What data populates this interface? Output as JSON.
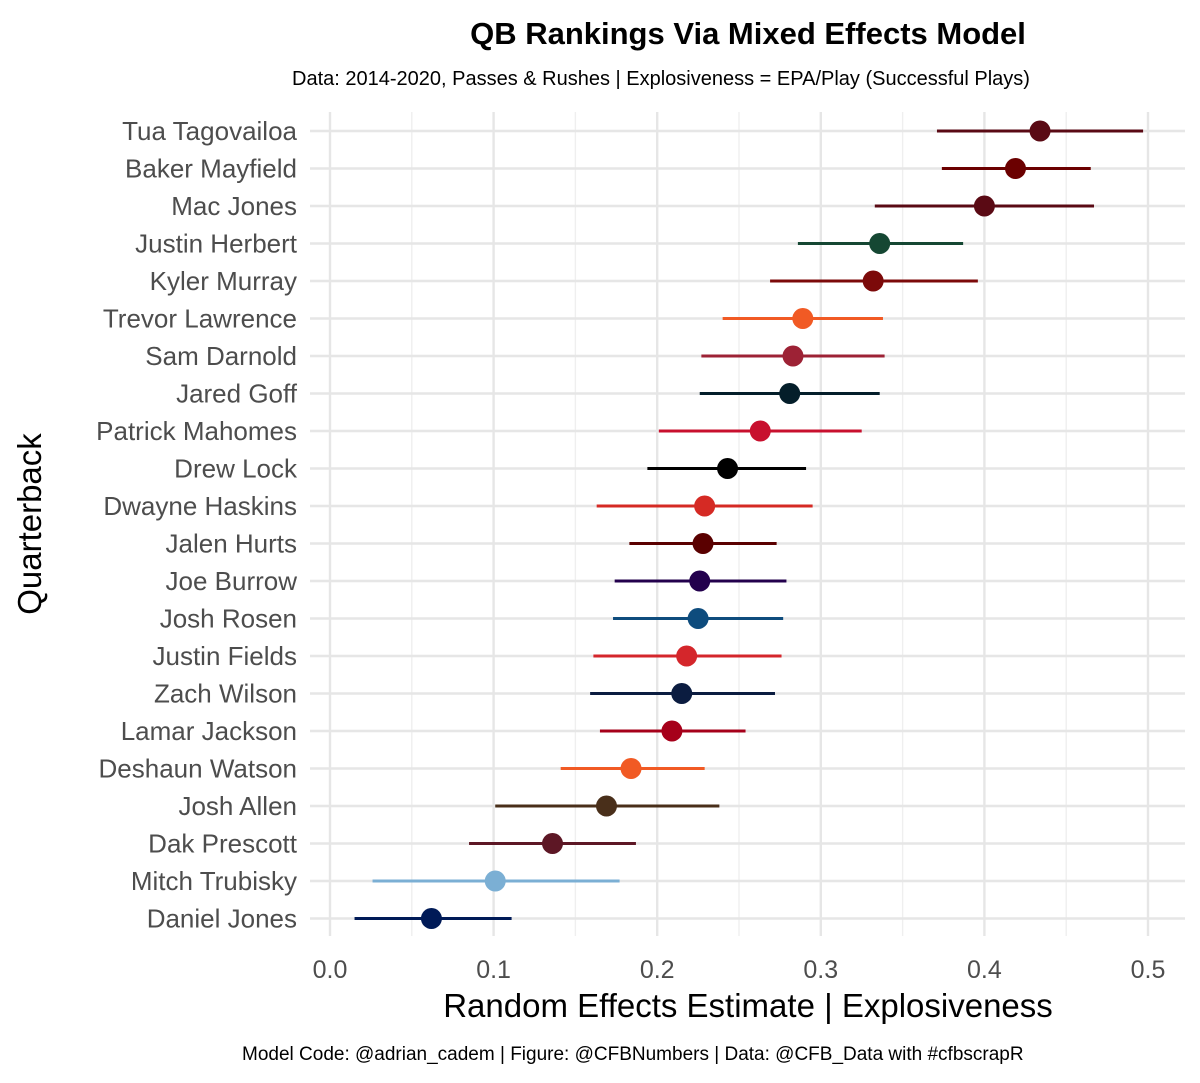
{
  "chart_data": {
    "type": "scatter",
    "title": "QB Rankings Via Mixed Effects Model",
    "subtitle": "Data: 2014-2020, Passes & Rushes | Explosiveness = EPA/Play (Successful Plays)",
    "caption": "Model Code: @adrian_cadem | Figure: @CFBNumbers | Data: @CFB_Data with #cfbscrapR",
    "xlabel": "Random Effects Estimate | Explosiveness",
    "ylabel": "Quarterback",
    "xlim": [
      -0.01,
      0.52
    ],
    "xticks": [
      "0.0",
      "0.1",
      "0.2",
      "0.3",
      "0.4",
      "0.5"
    ],
    "xtick_values": [
      0.0,
      0.1,
      0.2,
      0.3,
      0.4,
      0.5
    ],
    "grid": true,
    "series": [
      {
        "name": "Tua Tagovailoa",
        "estimate": 0.434,
        "lower": 0.371,
        "upper": 0.497,
        "color": "#5a0a14"
      },
      {
        "name": "Baker Mayfield",
        "estimate": 0.419,
        "lower": 0.374,
        "upper": 0.465,
        "color": "#6b0000"
      },
      {
        "name": "Mac Jones",
        "estimate": 0.4,
        "lower": 0.333,
        "upper": 0.467,
        "color": "#5a0a14"
      },
      {
        "name": "Justin Herbert",
        "estimate": 0.336,
        "lower": 0.286,
        "upper": 0.387,
        "color": "#154733"
      },
      {
        "name": "Kyler Murray",
        "estimate": 0.332,
        "lower": 0.269,
        "upper": 0.396,
        "color": "#7c0a0a"
      },
      {
        "name": "Trevor Lawrence",
        "estimate": 0.289,
        "lower": 0.24,
        "upper": 0.338,
        "color": "#f15a24"
      },
      {
        "name": "Sam Darnold",
        "estimate": 0.283,
        "lower": 0.227,
        "upper": 0.339,
        "color": "#9d2235"
      },
      {
        "name": "Jared Goff",
        "estimate": 0.281,
        "lower": 0.226,
        "upper": 0.336,
        "color": "#041e2a"
      },
      {
        "name": "Patrick Mahomes",
        "estimate": 0.263,
        "lower": 0.201,
        "upper": 0.325,
        "color": "#c8102e"
      },
      {
        "name": "Drew Lock",
        "estimate": 0.243,
        "lower": 0.194,
        "upper": 0.291,
        "color": "#000000"
      },
      {
        "name": "Dwayne Haskins",
        "estimate": 0.229,
        "lower": 0.163,
        "upper": 0.295,
        "color": "#d52a24"
      },
      {
        "name": "Jalen Hurts",
        "estimate": 0.228,
        "lower": 0.183,
        "upper": 0.273,
        "color": "#5a0000"
      },
      {
        "name": "Joe Burrow",
        "estimate": 0.226,
        "lower": 0.174,
        "upper": 0.279,
        "color": "#23004d"
      },
      {
        "name": "Josh Rosen",
        "estimate": 0.225,
        "lower": 0.173,
        "upper": 0.277,
        "color": "#0e4c7d"
      },
      {
        "name": "Justin Fields",
        "estimate": 0.218,
        "lower": 0.161,
        "upper": 0.276,
        "color": "#d4262b"
      },
      {
        "name": "Zach Wilson",
        "estimate": 0.215,
        "lower": 0.159,
        "upper": 0.272,
        "color": "#0b1c40"
      },
      {
        "name": "Lamar Jackson",
        "estimate": 0.209,
        "lower": 0.165,
        "upper": 0.254,
        "color": "#a6001a"
      },
      {
        "name": "Deshaun Watson",
        "estimate": 0.184,
        "lower": 0.141,
        "upper": 0.229,
        "color": "#f15a24"
      },
      {
        "name": "Josh Allen",
        "estimate": 0.169,
        "lower": 0.101,
        "upper": 0.238,
        "color": "#492f1a"
      },
      {
        "name": "Dak Prescott",
        "estimate": 0.136,
        "lower": 0.085,
        "upper": 0.187,
        "color": "#5d1725"
      },
      {
        "name": "Mitch Trubisky",
        "estimate": 0.101,
        "lower": 0.026,
        "upper": 0.177,
        "color": "#7bafd4"
      },
      {
        "name": "Daniel Jones",
        "estimate": 0.062,
        "lower": 0.015,
        "upper": 0.111,
        "color": "#001a57"
      }
    ]
  }
}
